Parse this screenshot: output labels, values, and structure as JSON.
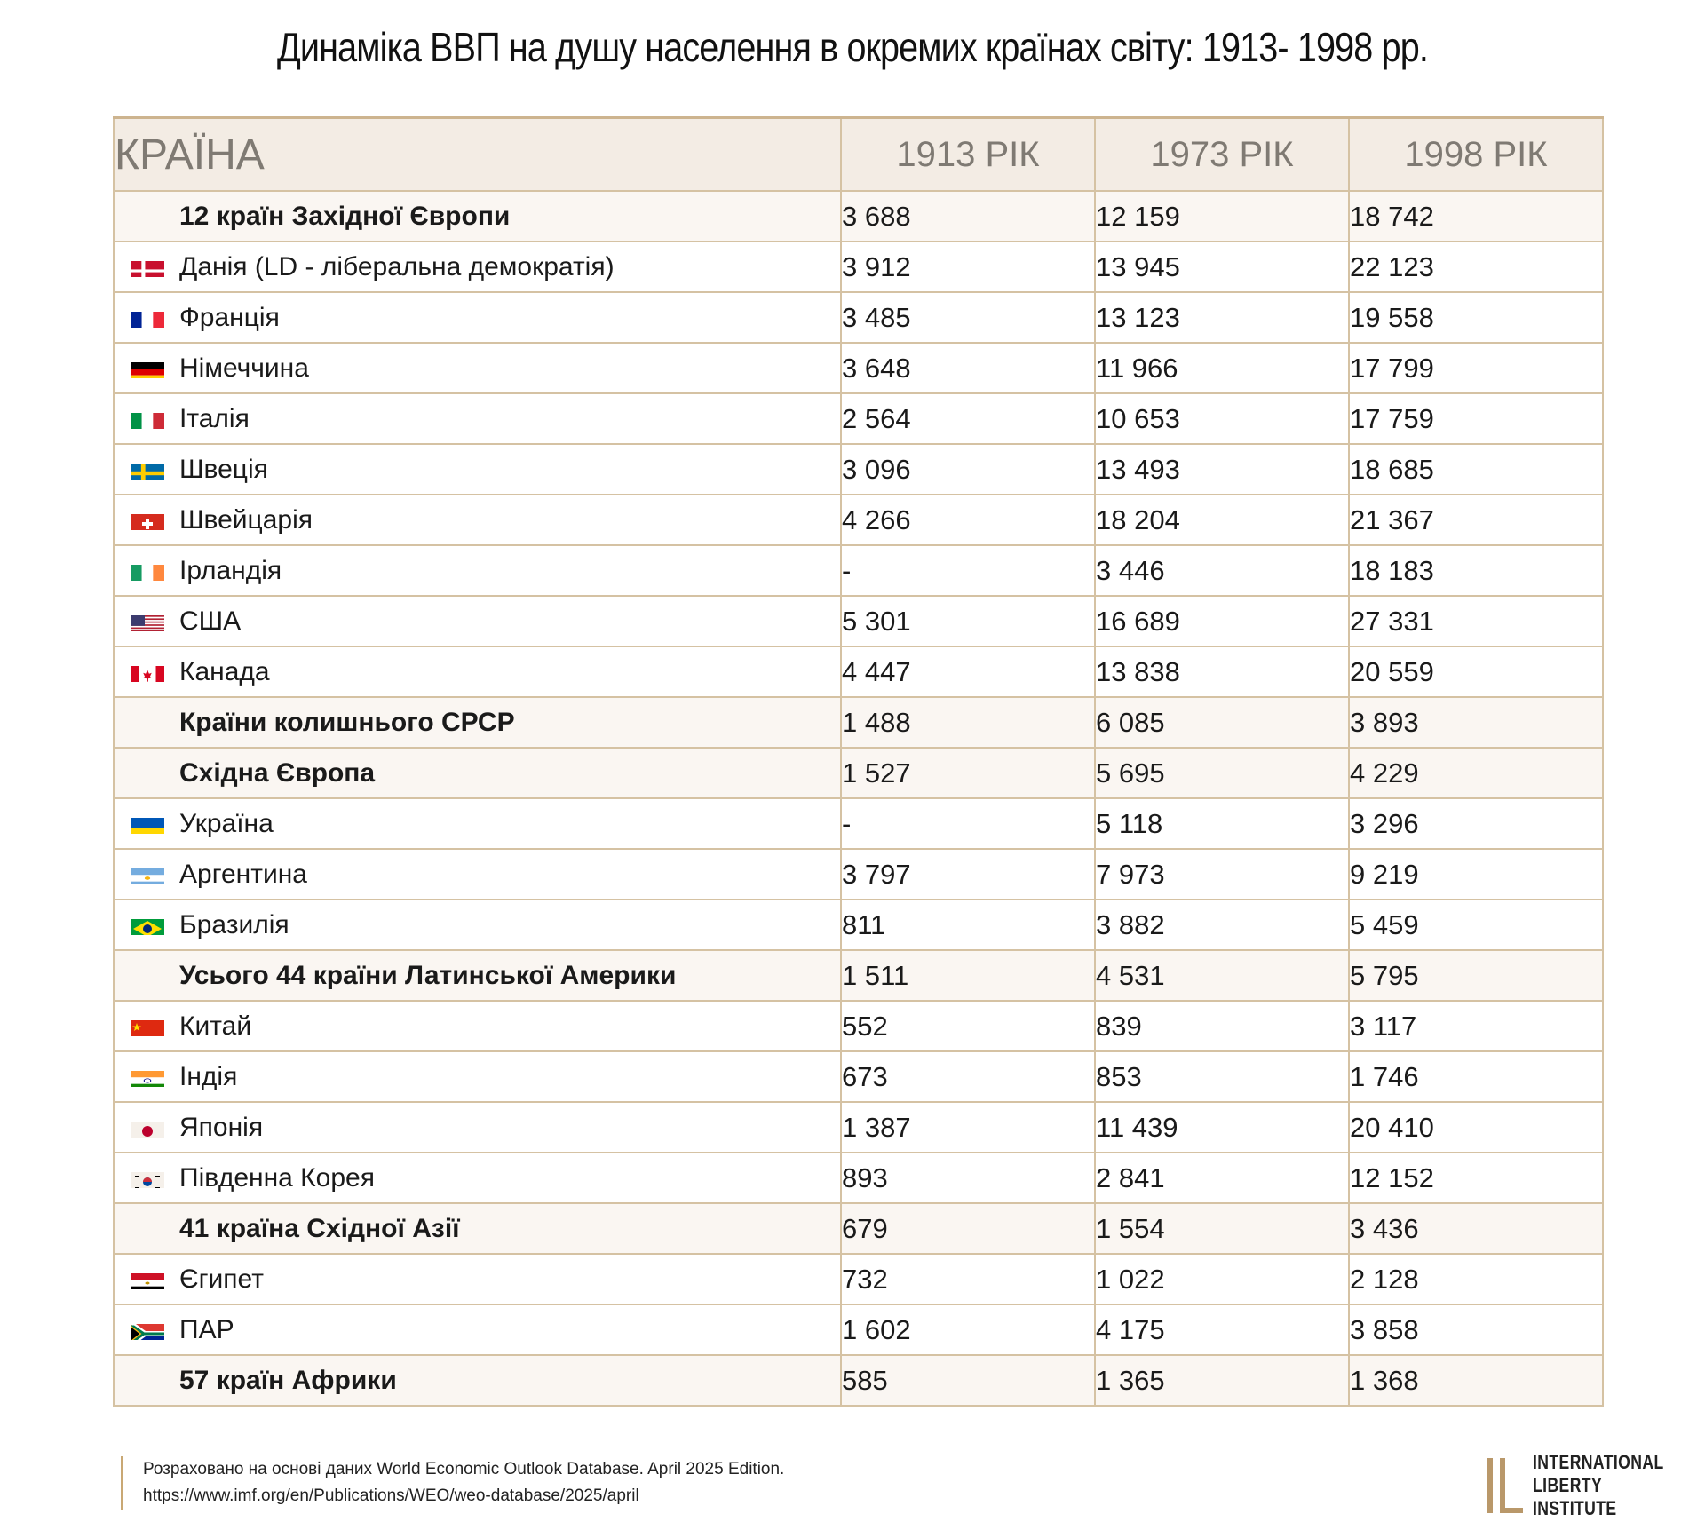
{
  "title": "Динаміка ВВП на душу населення в окремих країнах світу: 1913- 1998 рр.",
  "table": {
    "headers": [
      "КРАЇНА",
      "1913 РІК",
      "1973 РІК",
      "1998 РІК"
    ],
    "rows": [
      {
        "country": "12 країн Західної Європи",
        "flag": "",
        "group": true,
        "v1913": "3 688",
        "v1973": "12 159",
        "v1998": "18 742"
      },
      {
        "country": "Данія (LD - ліберальна демократія)",
        "flag": "denmark-flag-icon",
        "group": false,
        "v1913": "3 912",
        "v1973": "13 945",
        "v1998": "22 123"
      },
      {
        "country": "Франція",
        "flag": "france-flag-icon",
        "group": false,
        "v1913": "3 485",
        "v1973": "13 123",
        "v1998": "19 558"
      },
      {
        "country": "Німеччина",
        "flag": "germany-flag-icon",
        "group": false,
        "v1913": "3 648",
        "v1973": "11 966",
        "v1998": "17 799"
      },
      {
        "country": "Італія",
        "flag": "italy-flag-icon",
        "group": false,
        "v1913": "2 564",
        "v1973": "10 653",
        "v1998": "17 759"
      },
      {
        "country": "Швеція",
        "flag": "sweden-flag-icon",
        "group": false,
        "v1913": "3 096",
        "v1973": "13 493",
        "v1998": "18 685"
      },
      {
        "country": "Швейцарія",
        "flag": "switzerland-flag-icon",
        "group": false,
        "v1913": "4 266",
        "v1973": "18 204",
        "v1998": "21 367"
      },
      {
        "country": "Ірландія",
        "flag": "ireland-flag-icon",
        "group": false,
        "v1913": "-",
        "v1973": "3 446",
        "v1998": "18 183"
      },
      {
        "country": "США",
        "flag": "usa-flag-icon",
        "group": false,
        "v1913": "5 301",
        "v1973": "16 689",
        "v1998": "27 331"
      },
      {
        "country": "Канада",
        "flag": "canada-flag-icon",
        "group": false,
        "v1913": "4 447",
        "v1973": "13 838",
        "v1998": "20 559"
      },
      {
        "country": "Країни колишнього СРСР",
        "flag": "",
        "group": true,
        "v1913": "1 488",
        "v1973": "6 085",
        "v1998": "3 893"
      },
      {
        "country": "Східна Європа",
        "flag": "",
        "group": true,
        "v1913": "1 527",
        "v1973": "5 695",
        "v1998": "4 229"
      },
      {
        "country": "Україна",
        "flag": "ukraine-flag-icon",
        "group": false,
        "v1913": "-",
        "v1973": "5 118",
        "v1998": "3 296"
      },
      {
        "country": "Аргентина",
        "flag": "argentina-flag-icon",
        "group": false,
        "v1913": "3 797",
        "v1973": "7 973",
        "v1998": "9 219"
      },
      {
        "country": "Бразилія",
        "flag": "brazil-flag-icon",
        "group": false,
        "v1913": "811",
        "v1973": "3 882",
        "v1998": "5 459"
      },
      {
        "country": "Усього 44 країни Латинської Америки",
        "flag": "",
        "group": true,
        "v1913": "1 511",
        "v1973": "4 531",
        "v1998": "5 795"
      },
      {
        "country": "Китай",
        "flag": "china-flag-icon",
        "group": false,
        "v1913": "552",
        "v1973": "839",
        "v1998": "3 117"
      },
      {
        "country": "Індія",
        "flag": "india-flag-icon",
        "group": false,
        "v1913": "673",
        "v1973": "853",
        "v1998": "1 746"
      },
      {
        "country": "Японія",
        "flag": "japan-flag-icon",
        "group": false,
        "v1913": "1 387",
        "v1973": "11 439",
        "v1998": "20 410"
      },
      {
        "country": "Південна Корея",
        "flag": "south-korea-flag-icon",
        "group": false,
        "v1913": "893",
        "v1973": "2 841",
        "v1998": "12 152"
      },
      {
        "country": "41 країна Східної Азії",
        "flag": "",
        "group": true,
        "v1913": "679",
        "v1973": "1 554",
        "v1998": "3 436"
      },
      {
        "country": "Єгипет",
        "flag": "egypt-flag-icon",
        "group": false,
        "v1913": "732",
        "v1973": "1 022",
        "v1998": "2 128"
      },
      {
        "country": "ПАР",
        "flag": "south-africa-flag-icon",
        "group": false,
        "v1913": "1 602",
        "v1973": "4 175",
        "v1998": "3 858"
      },
      {
        "country": "57 країн Африки",
        "flag": "",
        "group": true,
        "v1913": "585",
        "v1973": "1 365",
        "v1998": "1 368"
      }
    ]
  },
  "footer": {
    "source": "Розраховано на основі даних World Economic Outlook Database. April 2025 Edition.",
    "link": "https://www.imf.org/en/Publications/WEO/weo-database/2025/april"
  },
  "logo": {
    "line1": "INTERNATIONAL",
    "line2": "LIBERTY INSTITUTE",
    "color": "#b9986a"
  }
}
